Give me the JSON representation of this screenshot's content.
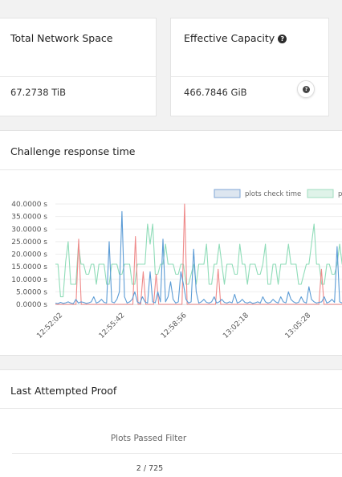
{
  "network_space": {
    "title": "Total Network Space",
    "value": "67.2738 TiB"
  },
  "effective_capacity": {
    "title": "Effective Capacity",
    "value": "466.7846 GiB",
    "help_icon": "question-circle-icon"
  },
  "challenge": {
    "title": "Challenge response time",
    "legend": [
      "plots check time",
      "pl"
    ]
  },
  "chart_data": {
    "type": "line",
    "ylabel": "",
    "ylim": [
      0,
      40
    ],
    "y_ticks": [
      "40.0000 s",
      "35.0000 s",
      "30.0000 s",
      "25.0000 s",
      "20.0000 s",
      "15.0000 s",
      "10.0000 s",
      "5.0000 s",
      "0.0000 s"
    ],
    "x_ticks": [
      "12:52:02",
      "12:55:42",
      "12:58:56",
      "13:02:18",
      "13:05:28"
    ],
    "grid": true,
    "legend_position": "top-right",
    "series": [
      {
        "name": "plots check time",
        "color": "#5b9bd5",
        "values": [
          0.5,
          0.3,
          0.8,
          0.4,
          0.6,
          1,
          0.5,
          0.3,
          2,
          0.5,
          1,
          0.8,
          0.4,
          0.6,
          1,
          3,
          0.5,
          1,
          2,
          0.8,
          0.5,
          25,
          1,
          0.6,
          2,
          5,
          37,
          3,
          0.5,
          1,
          2,
          5,
          1,
          0.4,
          3,
          1,
          0.5,
          13,
          1,
          0.6,
          5,
          1,
          26,
          1,
          3,
          9,
          2,
          0.5,
          1,
          13,
          8,
          2,
          0.5,
          1,
          22,
          5,
          0.5,
          1,
          2,
          0.8,
          0.5,
          1,
          3,
          0.5,
          1,
          2,
          0.8,
          0.5,
          1,
          0.6,
          4,
          0.5,
          1,
          2,
          0.8,
          0.5,
          1,
          0.4,
          0.6,
          1,
          0.5,
          3,
          1,
          0.5,
          0.8,
          2,
          1,
          0.5,
          3,
          1,
          0.6,
          5,
          2,
          1,
          0.5,
          0.8,
          3,
          1,
          0.5,
          7,
          2,
          1,
          0.5,
          0.8,
          1,
          3,
          0.5,
          1,
          2,
          0.8,
          23,
          1,
          0.5,
          1,
          2,
          0.8,
          0.5
        ]
      },
      {
        "name": "",
        "color": "#8fdcb8",
        "values": [
          16,
          16,
          3,
          3,
          17,
          25,
          8,
          8,
          8,
          24,
          16,
          16,
          12,
          12,
          16,
          16,
          8,
          16,
          16,
          16,
          8,
          8,
          16,
          16,
          16,
          12,
          12,
          16,
          16,
          16,
          8,
          8,
          16,
          16,
          16,
          16,
          32,
          24,
          32,
          12,
          12,
          16,
          16,
          24,
          16,
          16,
          16,
          12,
          12,
          16,
          16,
          8,
          8,
          12,
          16,
          8,
          16,
          16,
          16,
          24,
          8,
          8,
          16,
          16,
          24,
          16,
          8,
          16,
          16,
          16,
          12,
          12,
          24,
          16,
          16,
          8,
          16,
          16,
          16,
          12,
          12,
          16,
          24,
          8,
          8,
          16,
          16,
          8,
          16,
          16,
          16,
          24,
          16,
          16,
          16,
          8,
          8,
          12,
          16,
          16,
          24,
          32,
          16,
          16,
          8,
          8,
          16,
          16,
          12,
          12,
          16,
          24,
          16,
          16,
          16,
          8,
          0.5
        ]
      },
      {
        "name": "",
        "color": "#ef8a8a",
        "values": [
          0,
          0,
          0,
          0,
          0,
          0,
          0,
          0,
          0,
          26,
          0,
          0,
          0,
          0,
          0,
          0,
          0,
          0,
          0,
          0,
          0,
          0,
          0,
          0,
          0,
          0,
          0,
          0,
          0,
          0,
          0,
          27,
          0,
          0,
          13,
          0,
          0,
          0,
          0,
          12,
          0,
          0,
          0,
          0,
          0,
          0,
          0,
          0,
          0,
          0,
          40,
          0,
          0,
          0,
          0,
          0,
          0,
          0,
          0,
          0,
          0,
          0,
          0,
          14,
          0,
          0,
          0,
          0,
          0,
          0,
          0,
          0,
          0,
          0,
          0,
          0,
          0,
          0,
          0,
          0,
          0,
          0,
          0,
          0,
          0,
          0,
          0,
          0,
          0,
          0,
          0,
          0,
          0,
          0,
          0,
          0,
          0,
          0,
          0,
          0,
          0,
          0,
          0,
          14,
          0,
          0,
          0,
          0,
          0,
          0,
          0,
          0,
          0,
          0,
          0,
          0
        ]
      }
    ]
  },
  "proof": {
    "title": "Last Attempted Proof",
    "column_header": "Plots Passed Filter",
    "row_value": "2 / 725"
  }
}
